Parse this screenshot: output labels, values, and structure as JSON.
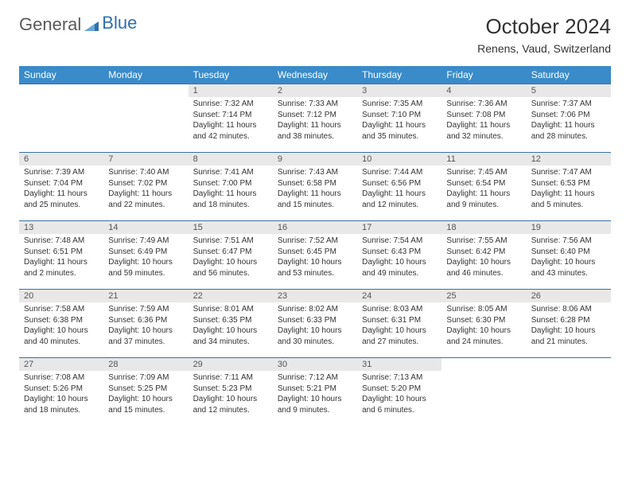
{
  "logo": {
    "text1": "General",
    "text2": "Blue"
  },
  "title": "October 2024",
  "location": "Renens, Vaud, Switzerland",
  "colors": {
    "header_bg": "#3a8bc9",
    "header_fg": "#ffffff",
    "row_border": "#3a6fa8",
    "daynum_bg": "#e8e8e8",
    "text": "#333333",
    "logo_blue": "#2f6fb0"
  },
  "weekdays": [
    "Sunday",
    "Monday",
    "Tuesday",
    "Wednesday",
    "Thursday",
    "Friday",
    "Saturday"
  ],
  "first_weekday_index": 2,
  "days": [
    {
      "n": 1,
      "sr": "7:32 AM",
      "ss": "7:14 PM",
      "dl": "11 hours and 42 minutes."
    },
    {
      "n": 2,
      "sr": "7:33 AM",
      "ss": "7:12 PM",
      "dl": "11 hours and 38 minutes."
    },
    {
      "n": 3,
      "sr": "7:35 AM",
      "ss": "7:10 PM",
      "dl": "11 hours and 35 minutes."
    },
    {
      "n": 4,
      "sr": "7:36 AM",
      "ss": "7:08 PM",
      "dl": "11 hours and 32 minutes."
    },
    {
      "n": 5,
      "sr": "7:37 AM",
      "ss": "7:06 PM",
      "dl": "11 hours and 28 minutes."
    },
    {
      "n": 6,
      "sr": "7:39 AM",
      "ss": "7:04 PM",
      "dl": "11 hours and 25 minutes."
    },
    {
      "n": 7,
      "sr": "7:40 AM",
      "ss": "7:02 PM",
      "dl": "11 hours and 22 minutes."
    },
    {
      "n": 8,
      "sr": "7:41 AM",
      "ss": "7:00 PM",
      "dl": "11 hours and 18 minutes."
    },
    {
      "n": 9,
      "sr": "7:43 AM",
      "ss": "6:58 PM",
      "dl": "11 hours and 15 minutes."
    },
    {
      "n": 10,
      "sr": "7:44 AM",
      "ss": "6:56 PM",
      "dl": "11 hours and 12 minutes."
    },
    {
      "n": 11,
      "sr": "7:45 AM",
      "ss": "6:54 PM",
      "dl": "11 hours and 9 minutes."
    },
    {
      "n": 12,
      "sr": "7:47 AM",
      "ss": "6:53 PM",
      "dl": "11 hours and 5 minutes."
    },
    {
      "n": 13,
      "sr": "7:48 AM",
      "ss": "6:51 PM",
      "dl": "11 hours and 2 minutes."
    },
    {
      "n": 14,
      "sr": "7:49 AM",
      "ss": "6:49 PM",
      "dl": "10 hours and 59 minutes."
    },
    {
      "n": 15,
      "sr": "7:51 AM",
      "ss": "6:47 PM",
      "dl": "10 hours and 56 minutes."
    },
    {
      "n": 16,
      "sr": "7:52 AM",
      "ss": "6:45 PM",
      "dl": "10 hours and 53 minutes."
    },
    {
      "n": 17,
      "sr": "7:54 AM",
      "ss": "6:43 PM",
      "dl": "10 hours and 49 minutes."
    },
    {
      "n": 18,
      "sr": "7:55 AM",
      "ss": "6:42 PM",
      "dl": "10 hours and 46 minutes."
    },
    {
      "n": 19,
      "sr": "7:56 AM",
      "ss": "6:40 PM",
      "dl": "10 hours and 43 minutes."
    },
    {
      "n": 20,
      "sr": "7:58 AM",
      "ss": "6:38 PM",
      "dl": "10 hours and 40 minutes."
    },
    {
      "n": 21,
      "sr": "7:59 AM",
      "ss": "6:36 PM",
      "dl": "10 hours and 37 minutes."
    },
    {
      "n": 22,
      "sr": "8:01 AM",
      "ss": "6:35 PM",
      "dl": "10 hours and 34 minutes."
    },
    {
      "n": 23,
      "sr": "8:02 AM",
      "ss": "6:33 PM",
      "dl": "10 hours and 30 minutes."
    },
    {
      "n": 24,
      "sr": "8:03 AM",
      "ss": "6:31 PM",
      "dl": "10 hours and 27 minutes."
    },
    {
      "n": 25,
      "sr": "8:05 AM",
      "ss": "6:30 PM",
      "dl": "10 hours and 24 minutes."
    },
    {
      "n": 26,
      "sr": "8:06 AM",
      "ss": "6:28 PM",
      "dl": "10 hours and 21 minutes."
    },
    {
      "n": 27,
      "sr": "7:08 AM",
      "ss": "5:26 PM",
      "dl": "10 hours and 18 minutes."
    },
    {
      "n": 28,
      "sr": "7:09 AM",
      "ss": "5:25 PM",
      "dl": "10 hours and 15 minutes."
    },
    {
      "n": 29,
      "sr": "7:11 AM",
      "ss": "5:23 PM",
      "dl": "10 hours and 12 minutes."
    },
    {
      "n": 30,
      "sr": "7:12 AM",
      "ss": "5:21 PM",
      "dl": "10 hours and 9 minutes."
    },
    {
      "n": 31,
      "sr": "7:13 AM",
      "ss": "5:20 PM",
      "dl": "10 hours and 6 minutes."
    }
  ],
  "labels": {
    "sunrise": "Sunrise:",
    "sunset": "Sunset:",
    "daylight": "Daylight:"
  }
}
